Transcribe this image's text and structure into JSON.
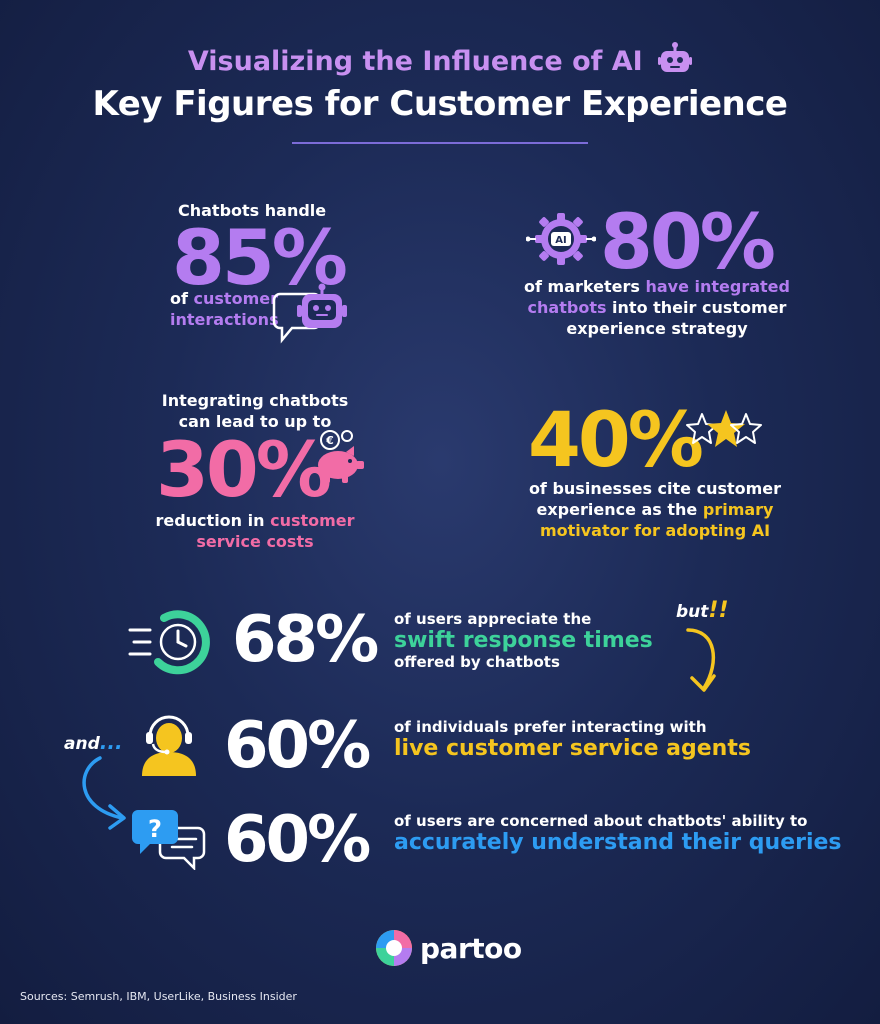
{
  "header": {
    "subtitle": "Visualizing the Influence of AI",
    "title": "Key Figures for Customer Experience",
    "robot_icon": "robot-icon"
  },
  "stat_85": {
    "top": "Chatbots handle",
    "value": "85%",
    "line1_prefix": "of ",
    "line1_highlight": "customer",
    "line2_highlight": "interactions",
    "icon": "robot-chat-icon"
  },
  "stat_80": {
    "value": "80%",
    "line1_prefix": "of marketers ",
    "line1_highlight": "have integrated",
    "line2_highlight": "chatbots",
    "line2_rest": " into their customer",
    "line3": "experience strategy",
    "icon": "ai-gear-icon",
    "icon_label": "AI"
  },
  "stat_30": {
    "top1": "Integrating chatbots",
    "top2": "can lead to up to",
    "value": "30%",
    "line1_prefix": "reduction in ",
    "line1_highlight": "customer",
    "line2_highlight": "service costs",
    "icon": "piggy-bank-euro-icon"
  },
  "stat_40": {
    "value": "40%",
    "line1": "of businesses cite customer",
    "line2_prefix": "experience as the ",
    "line2_highlight": "primary",
    "line3_highlight": "motivator for adopting AI",
    "icon": "stars-icon"
  },
  "row_68": {
    "value": "68%",
    "top": "of users appreciate the",
    "highlight": "swift response times",
    "bottom": "offered by chatbots",
    "icon": "fast-clock-icon"
  },
  "row_60a": {
    "value": "60%",
    "top": "of individuals prefer interacting with",
    "highlight": "live customer service agents",
    "icon": "headset-agent-icon"
  },
  "row_60b": {
    "value": "60%",
    "top": "of users are concerned about chatbots' ability to",
    "highlight": "accurately understand their queries",
    "icon": "question-chat-icon"
  },
  "annotations": {
    "but": "but",
    "but_marks": "!!",
    "and": "and",
    "and_dots": "..."
  },
  "logo": {
    "text": "partoo"
  },
  "sources": "Sources: Semrush, IBM, UserLike, Business Insider",
  "colors": {
    "purple": "#b47cf0",
    "pink": "#f26ca6",
    "yellow": "#f5c51f",
    "green": "#3dd29a",
    "blue": "#2d9cf2",
    "background": "#1c2a56"
  }
}
